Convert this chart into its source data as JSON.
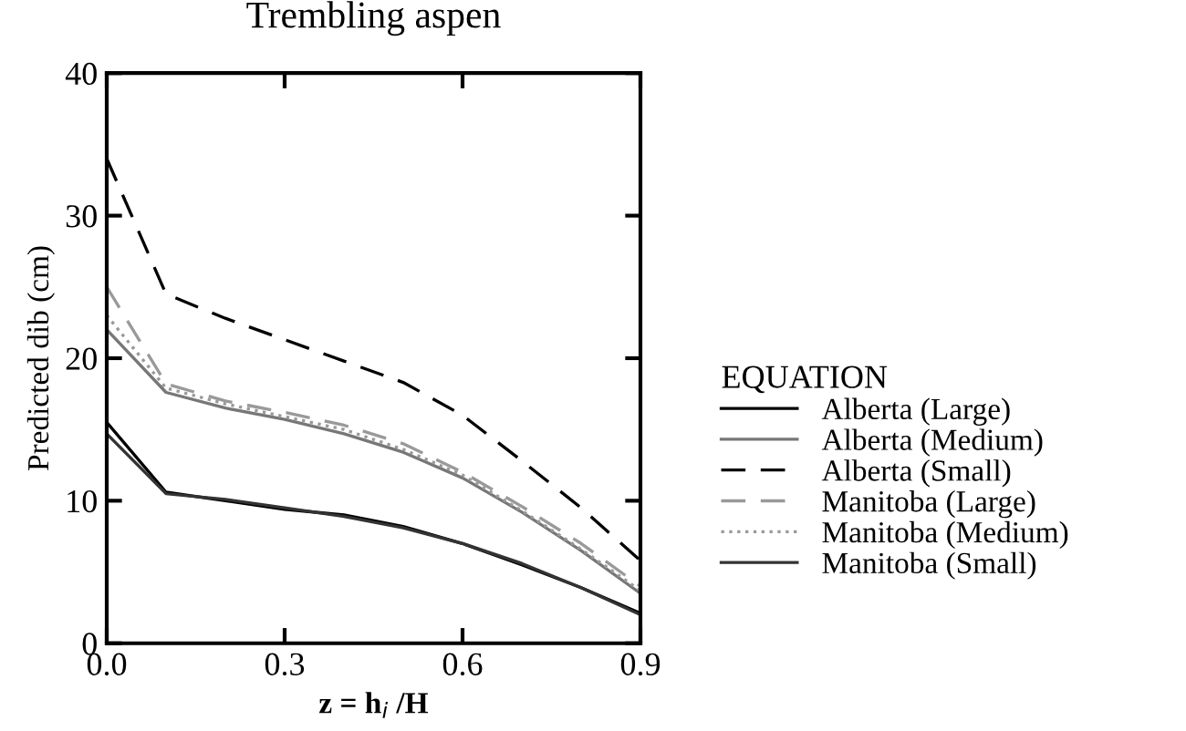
{
  "chart_data": {
    "type": "line",
    "title": "Trembling aspen",
    "xlabel": "z = h$_{i}$ /H",
    "ylabel": "Predicted dib (cm)",
    "legend_title": "EQUATION",
    "legend": "right",
    "grid": false,
    "xlim": [
      0,
      0.9
    ],
    "ylim": [
      0,
      40
    ],
    "xticks": [
      {
        "value": 0,
        "label": "0.0"
      },
      0.3,
      0.6,
      0.9
    ],
    "yticks": [
      0,
      10,
      20,
      30,
      40
    ],
    "x": [
      0,
      0.1,
      0.2,
      0.3,
      0.4,
      0.5,
      0.6,
      0.7,
      0.8,
      0.9
    ],
    "series": [
      {
        "name": "Alberta (Large)",
        "color": "#000000",
        "line_style": "solid",
        "values": [
          15.5,
          10.6,
          10.0,
          9.4,
          9.0,
          8.2,
          7.0,
          5.5,
          3.9,
          2.1
        ]
      },
      {
        "name": "Alberta (Medium)",
        "color": "#777777",
        "line_style": "solid",
        "values": [
          22,
          17.6,
          16.5,
          15.7,
          14.7,
          13.4,
          11.6,
          9.2,
          6.5,
          3.5
        ]
      },
      {
        "name": "Alberta (Small)",
        "color": "#000000",
        "line_style": "dashed",
        "values": [
          34,
          24.5,
          22.8,
          21.3,
          19.8,
          18.3,
          16.0,
          12.8,
          9.5,
          5.8
        ]
      },
      {
        "name": "Manitoba (Large)",
        "color": "#999999",
        "line_style": "dashed",
        "values": [
          25,
          18.2,
          17.0,
          16.2,
          15.3,
          14.0,
          12.0,
          9.6,
          7.0,
          4.0
        ]
      },
      {
        "name": "Manitoba (Medium)",
        "color": "#999999",
        "line_style": "dotted",
        "values": [
          23,
          17.9,
          16.8,
          15.9,
          15.0,
          13.6,
          11.8,
          9.3,
          6.6,
          3.7
        ]
      },
      {
        "name": "Manitoba (Small)",
        "color": "#333333",
        "line_style": "solid",
        "values": [
          14.7,
          10.5,
          10.1,
          9.5,
          8.9,
          8.1,
          7.0,
          5.6,
          3.9,
          2.0
        ]
      }
    ]
  }
}
